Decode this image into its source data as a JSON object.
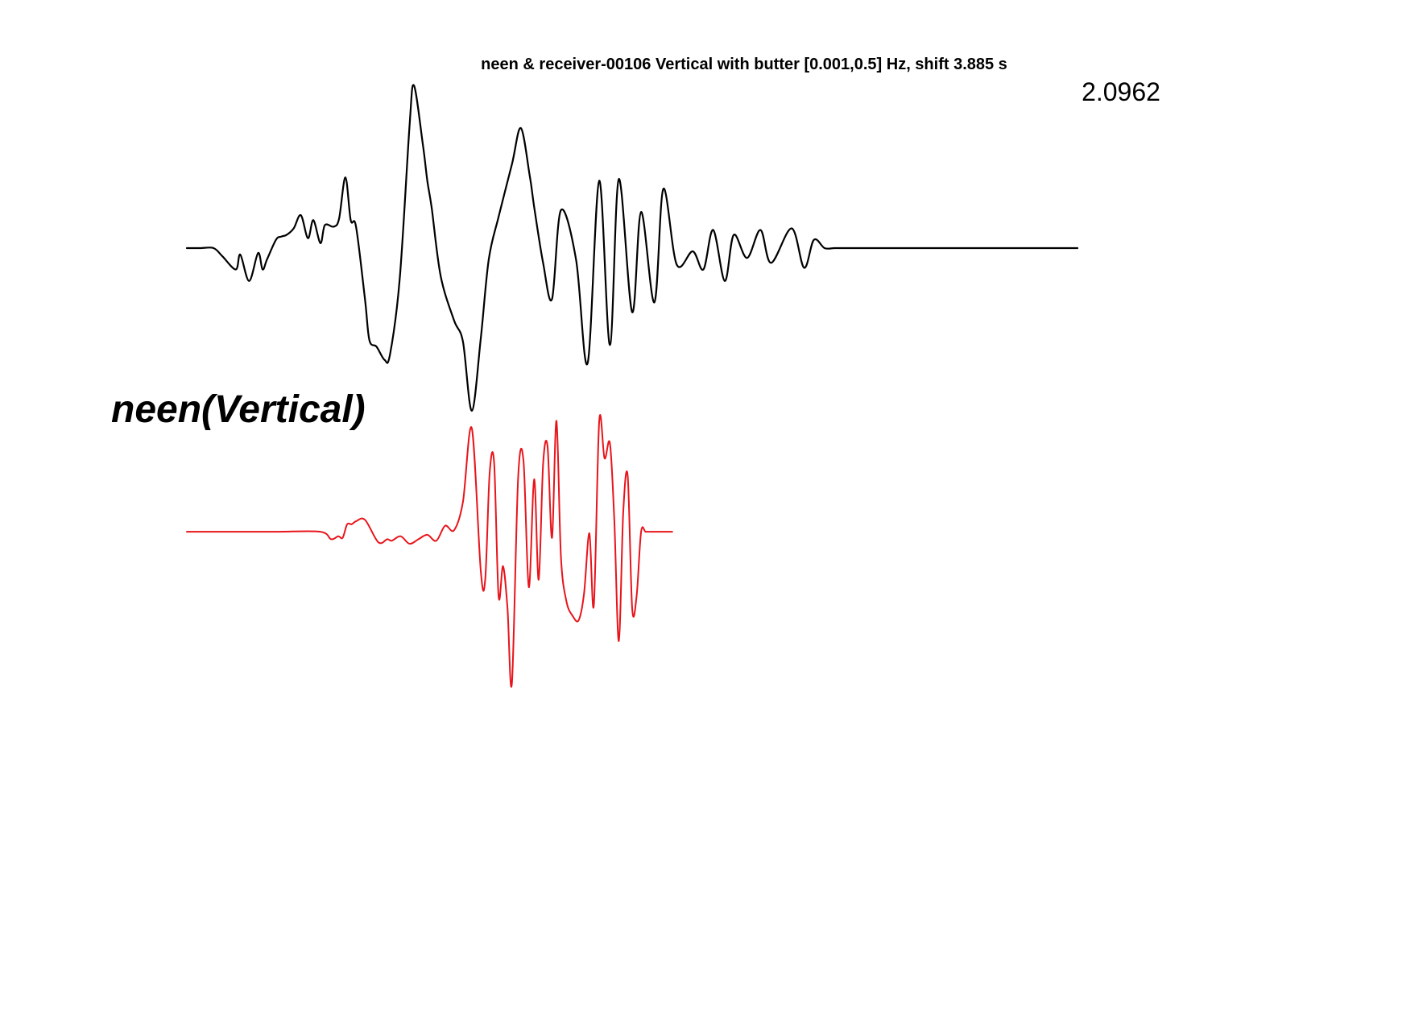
{
  "chart_data": {
    "type": "line",
    "title": "neen & receiver-00106 Vertical with butter [0.001,0.5] Hz, shift 3.885 s",
    "scale_label": "2.0962",
    "station_label": "neen(Vertical)",
    "grid": false,
    "legend": "none",
    "xlim": [
      0,
      100
    ],
    "ylim": [
      -1,
      1
    ],
    "colors": {
      "trace_top": "#000000",
      "trace_bottom": "#e8141b"
    },
    "series": [
      {
        "key": "trace_top",
        "x": [
          0,
          1.5,
          3.0,
          4.0,
          5.5,
          6.0,
          7.0,
          8.0,
          8.5,
          9.0,
          10.0,
          10.6,
          11.2,
          12.0,
          12.8,
          13.6,
          14.2,
          15.0,
          15.5,
          16.5,
          17.1,
          17.8,
          18.4,
          19.0,
          20.0,
          20.5,
          21.3,
          22.2,
          22.8,
          23.9,
          25.0,
          25.5,
          26.5,
          27.0,
          27.5,
          28.5,
          30.0,
          31.0,
          32.0,
          33.0,
          33.9,
          35.0,
          36.5,
          37.5,
          38.5,
          39.0,
          40.0,
          41.0,
          42.0,
          43.7,
          45.0,
          46.3,
          47.5,
          48.5,
          50.0,
          51.0,
          52.5,
          53.5,
          55.0,
          56.8,
          58.0,
          59.1,
          60.4,
          61.4,
          62.9,
          64.4,
          65.6,
          67.9,
          69.3,
          70.4,
          71.6,
          72.7,
          73.8,
          75.1,
          76.4,
          77.8,
          79.3,
          80.6,
          81.9,
          83.2,
          84.3,
          85.4,
          87.0,
          88.4,
          89.6,
          91.0,
          92.8,
          94.2,
          96.0,
          98.0,
          100.0
        ],
        "y": [
          0.01,
          0.01,
          0.01,
          -0.04,
          -0.12,
          -0.03,
          -0.19,
          -0.02,
          -0.12,
          -0.06,
          0.06,
          0.08,
          0.09,
          0.13,
          0.21,
          0.07,
          0.18,
          0.04,
          0.15,
          0.14,
          0.19,
          0.44,
          0.18,
          0.14,
          -0.3,
          -0.55,
          -0.59,
          -0.67,
          -0.64,
          -0.18,
          0.75,
          1.0,
          0.64,
          0.42,
          0.25,
          -0.16,
          -0.43,
          -0.56,
          -0.98,
          -0.54,
          -0.06,
          0.2,
          0.52,
          0.74,
          0.45,
          0.26,
          -0.08,
          -0.3,
          0.24,
          -0.06,
          -0.69,
          0.42,
          -0.58,
          0.43,
          -0.38,
          0.23,
          -0.32,
          0.37,
          -0.09,
          -0.01,
          -0.12,
          0.12,
          -0.19,
          0.09,
          -0.05,
          0.12,
          -0.08,
          0.13,
          -0.11,
          0.06,
          0.01,
          0.01,
          0.01,
          0.01,
          0.01,
          0.01,
          0.01,
          0.01,
          0.01,
          0.01,
          0.01,
          0.01,
          0.01,
          0.01,
          0.01,
          0.01,
          0.01,
          0.01,
          0.01,
          0.01,
          0.01
        ]
      },
      {
        "key": "trace_bottom",
        "x": [
          0,
          5,
          10,
          15,
          16.2,
          17.0,
          17.5,
          18.0,
          18.5,
          19.0,
          20.0,
          21.5,
          22.5,
          23.0,
          24.0,
          25.0,
          26.0,
          27.0,
          28.0,
          29.0,
          30.0,
          31.0,
          32.0,
          33.0,
          33.5,
          34.0,
          34.5,
          35.0,
          35.5,
          36.0,
          36.5,
          37.2,
          37.8,
          38.4,
          39.0,
          39.5,
          40.0,
          40.5,
          41.0,
          41.5,
          42.0,
          42.6,
          43.3,
          44.0,
          44.6,
          45.2,
          45.7,
          46.3,
          46.9,
          47.5,
          48.0,
          48.5,
          49.0,
          49.5,
          50.0,
          50.5,
          51.0,
          51.5,
          52.0,
          52.5,
          53.0,
          53.5,
          54.0,
          54.5
        ],
        "y": [
          0.01,
          0.01,
          0.01,
          0.01,
          -0.04,
          -0.02,
          -0.03,
          0.06,
          0.06,
          0.08,
          0.09,
          -0.06,
          -0.04,
          -0.05,
          -0.02,
          -0.07,
          -0.04,
          -0.01,
          -0.05,
          0.05,
          0.02,
          0.21,
          0.7,
          -0.25,
          -0.31,
          0.4,
          0.47,
          -0.42,
          -0.22,
          -0.5,
          -1.0,
          0.37,
          0.48,
          -0.36,
          0.36,
          -0.31,
          0.46,
          0.58,
          -0.03,
          0.75,
          -0.15,
          -0.45,
          -0.55,
          -0.58,
          -0.4,
          0.0,
          -0.48,
          0.75,
          0.5,
          0.6,
          0.08,
          -0.72,
          0.14,
          0.38,
          -0.5,
          -0.42,
          0.01,
          0.01,
          0.01,
          0.01,
          0.01,
          0.01,
          0.01,
          0.01
        ]
      }
    ]
  }
}
